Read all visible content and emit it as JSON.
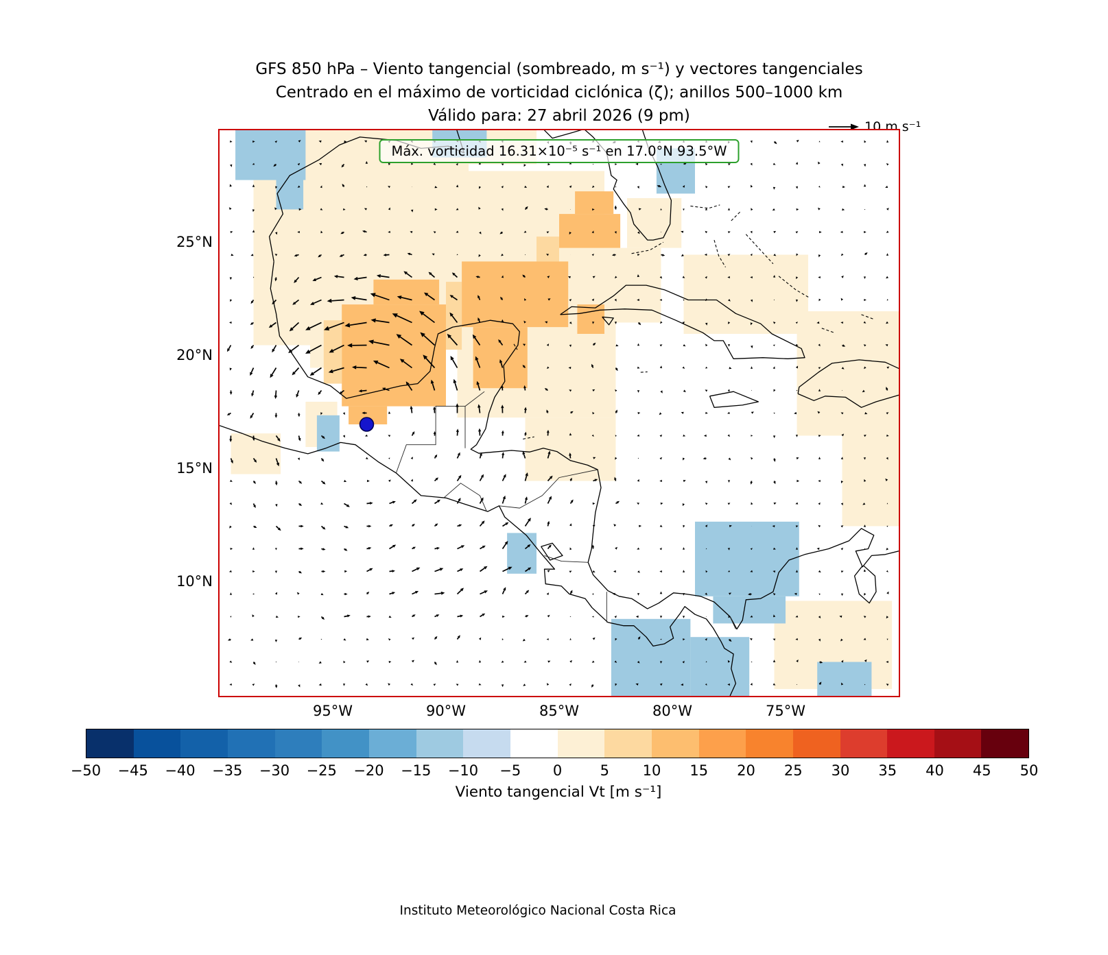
{
  "title": {
    "line1": "GFS 850 hPa – Viento tangencial (sombreado, m s⁻¹) y vectores tangenciales",
    "line2": "Centrado en el máximo de vorticidad ciclónica (ζ); anillos 500–1000 km",
    "line3": "Válido para: 27 abril 2026 (9 pm)"
  },
  "reference_vector": {
    "label": "10 m s⁻¹"
  },
  "annotation": {
    "text": "Máx. vorticidad 16.31×10⁻⁵ s⁻¹ en 17.0°N 93.5°W"
  },
  "footer": "Instituto Meteorológico Nacional Costa Rica",
  "colors": {
    "map_border": "#cc0000",
    "annotation_border": "#2ca02c",
    "marker": "#1515cd",
    "arrow": "#000000"
  },
  "chart_data": {
    "type": "heatmap",
    "subtype": "shaded-map-with-quiver",
    "title": "GFS 850 hPa – Viento tangencial (sombreado, m s⁻¹) y vectores tangenciales",
    "subtitle": "Centrado en el máximo de vorticidad ciclónica (ζ); anillos 500–1000 km",
    "valid_time": "Válido para: 27 abril 2026 (9 pm)",
    "map_extent": {
      "lon_min": -100,
      "lon_max": -70,
      "lat_min": 5,
      "lat_max": 30
    },
    "x_ticks": [
      {
        "lon": -95,
        "label": "95°W"
      },
      {
        "lon": -90,
        "label": "90°W"
      },
      {
        "lon": -85,
        "label": "85°W"
      },
      {
        "lon": -80,
        "label": "80°W"
      },
      {
        "lon": -75,
        "label": "75°W"
      }
    ],
    "y_ticks": [
      {
        "lat": 25,
        "label": "25°N"
      },
      {
        "lat": 20,
        "label": "20°N"
      },
      {
        "lat": 15,
        "label": "15°N"
      },
      {
        "lat": 10,
        "label": "10°N"
      }
    ],
    "vorticity_max": {
      "label": "Máx. vorticidad 16.31×10⁻⁵ s⁻¹ en 17.0°N 93.5°W",
      "value_text": "16.31×10⁻⁵ s⁻¹",
      "lat": 17.0,
      "lon": -93.5,
      "marker_color": "#1515cd"
    },
    "quiver": {
      "grid_spacing_deg": 1,
      "rotation": "counterclockwise",
      "reference_ms": 10
    },
    "colorbar": {
      "label": "Viento tangencial Vt [m s⁻¹]",
      "levels": [
        -50,
        -45,
        -40,
        -35,
        -30,
        -25,
        -20,
        -15,
        -10,
        -5,
        0,
        5,
        10,
        15,
        20,
        25,
        30,
        35,
        40,
        45,
        50
      ],
      "tick_labels": [
        "−50",
        "−45",
        "−40",
        "−35",
        "−30",
        "−25",
        "−20",
        "−15",
        "−10",
        "−5",
        "0",
        "5",
        "10",
        "15",
        "20",
        "25",
        "30",
        "35",
        "40",
        "45",
        "50"
      ],
      "colors": [
        "#08306b",
        "#08519c",
        "#1361a9",
        "#2171b5",
        "#2e7ebc",
        "#4292c6",
        "#6baed6",
        "#9ecae1",
        "#c6dbef",
        "#ffffff",
        "#fdf0d5",
        "#fdd9a0",
        "#fdbe6f",
        "#fda04b",
        "#f8832d",
        "#ef6220",
        "#dd3d2d",
        "#cb181d",
        "#a50f15",
        "#67000d"
      ]
    },
    "shaded_cells_lon0_lat0_lon1_lat1_value": [
      [
        -98.5,
        20.5,
        -89.0,
        28.5,
        2
      ],
      [
        -96.5,
        28.5,
        -86.0,
        30.0,
        2
      ],
      [
        -91.0,
        23.5,
        -83.0,
        28.2,
        2
      ],
      [
        -89.5,
        17.3,
        -82.5,
        23.5,
        2
      ],
      [
        -96.0,
        19.5,
        -94.6,
        21.5,
        2
      ],
      [
        -99.5,
        14.8,
        -97.3,
        16.6,
        2
      ],
      [
        -96.2,
        16.0,
        -94.8,
        18.0,
        2
      ],
      [
        -86.5,
        14.5,
        -82.5,
        17.3,
        2
      ],
      [
        -85.0,
        21.5,
        -80.5,
        24.8,
        2
      ],
      [
        -79.5,
        21.0,
        -74.0,
        24.5,
        2
      ],
      [
        -74.5,
        16.5,
        -70.0,
        22.0,
        2
      ],
      [
        -72.5,
        12.5,
        -70.0,
        16.5,
        2
      ],
      [
        -75.5,
        5.3,
        -70.3,
        9.2,
        2
      ],
      [
        -82.0,
        24.8,
        -79.6,
        27.0,
        2
      ],
      [
        -90.0,
        20.3,
        -89.3,
        23.3,
        7
      ],
      [
        -95.4,
        18.8,
        -94.6,
        21.6,
        7
      ],
      [
        -86.0,
        24.2,
        -85.0,
        25.3,
        7
      ],
      [
        -89.3,
        21.3,
        -84.6,
        24.2,
        11
      ],
      [
        -88.8,
        18.6,
        -86.4,
        21.3,
        11
      ],
      [
        -84.2,
        21.0,
        -83.0,
        22.3,
        11
      ],
      [
        -85.0,
        24.8,
        -82.3,
        26.3,
        11
      ],
      [
        -84.3,
        26.3,
        -82.6,
        27.3,
        11
      ],
      [
        -94.6,
        17.8,
        -90.0,
        22.3,
        11
      ],
      [
        -93.2,
        22.3,
        -90.3,
        23.4,
        11
      ],
      [
        -94.3,
        17.0,
        -92.6,
        17.8,
        11
      ],
      [
        -99.3,
        27.8,
        -96.2,
        30.0,
        -12
      ],
      [
        -97.5,
        26.5,
        -96.3,
        28.2,
        -12
      ],
      [
        -90.6,
        28.8,
        -88.2,
        30.0,
        -12
      ],
      [
        -80.7,
        27.2,
        -79.0,
        29.2,
        -12
      ],
      [
        -95.7,
        15.8,
        -94.7,
        17.4,
        -12
      ],
      [
        -87.3,
        10.4,
        -86.0,
        12.2,
        -12
      ],
      [
        -79.0,
        9.4,
        -74.4,
        12.7,
        -12
      ],
      [
        -78.2,
        8.2,
        -75.0,
        9.4,
        -12
      ],
      [
        -82.7,
        5.0,
        -79.2,
        8.4,
        -12
      ],
      [
        -79.2,
        5.0,
        -76.6,
        7.6,
        -12
      ],
      [
        -73.6,
        5.0,
        -71.2,
        6.5,
        -12
      ]
    ]
  }
}
